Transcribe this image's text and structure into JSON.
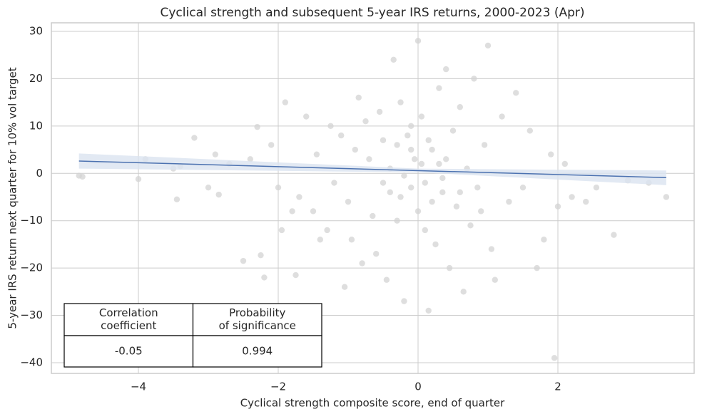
{
  "chart_data": {
    "type": "scatter",
    "title": "Cyclical strength and subsequent 5-year IRS returns, 2000-2023 (Apr)",
    "x_label": "Cyclical strength composite score, end of quarter",
    "y_label": "5-year IRS return next quarter for 10% vol target",
    "xlim": [
      -5.245,
      3.949
    ],
    "ylim": [
      -42.26,
      31.8
    ],
    "xticks": [
      {
        "value": -4,
        "label": "−4"
      },
      {
        "value": -2,
        "label": "−2"
      },
      0,
      2
    ],
    "yticks": [
      {
        "value": -40,
        "label": "−40"
      },
      {
        "value": -30,
        "label": "−30"
      },
      {
        "value": -20,
        "label": "−20"
      },
      {
        "value": -10,
        "label": "−10"
      },
      0,
      10,
      20,
      30
    ],
    "grid": true,
    "point_color": "#d3d3d3",
    "x": [
      -4.85,
      -4.8,
      -4.0,
      -3.9,
      -3.5,
      -3.45,
      -3.4,
      -3.2,
      -3.0,
      -2.9,
      -2.85,
      -2.7,
      -2.5,
      -2.4,
      -2.3,
      -2.25,
      -2.2,
      -2.1,
      -2.0,
      -1.95,
      -1.9,
      -1.8,
      -1.75,
      -1.7,
      -1.6,
      -1.5,
      -1.45,
      -1.4,
      -1.3,
      -1.25,
      -1.2,
      -1.1,
      -1.05,
      -1.0,
      -0.95,
      -0.9,
      -0.85,
      -0.8,
      -0.75,
      -0.7,
      -0.65,
      -0.6,
      -0.55,
      -0.5,
      -0.45,
      -0.4,
      -0.35,
      -0.3,
      -0.25,
      -0.2,
      -0.15,
      -0.1,
      -0.05,
      0.0,
      0.05,
      0.1,
      0.15,
      0.2,
      0.25,
      0.3,
      0.35,
      0.4,
      0.45,
      0.5,
      0.55,
      0.6,
      0.65,
      0.7,
      0.75,
      0.8,
      0.85,
      0.9,
      0.95,
      1.0,
      1.05,
      1.1,
      1.2,
      1.3,
      1.4,
      1.5,
      1.6,
      1.7,
      1.8,
      1.9,
      1.95,
      2.0,
      2.1,
      2.2,
      2.4,
      2.55,
      2.8,
      3.0,
      3.3,
      3.55,
      -0.2,
      0.3,
      0.1,
      -0.4,
      0.6,
      -0.1,
      -0.3,
      0.2,
      -0.5,
      0.4,
      0.0,
      -0.1,
      0.15,
      -0.25,
      0.35,
      0.05
    ],
    "y": [
      -0.5,
      -0.7,
      -1.2,
      3.0,
      1.0,
      -5.5,
      1.5,
      7.5,
      -3,
      4,
      -4.5,
      2,
      -18.5,
      3,
      9.8,
      -17.3,
      -22,
      6,
      -3,
      -12,
      15,
      -8,
      -21.5,
      -5,
      12,
      -8,
      4,
      -14,
      -12,
      10,
      -2,
      8,
      -24,
      -6,
      -14,
      5,
      16,
      -19,
      11,
      3,
      -9,
      -17,
      13,
      7,
      -22.5,
      -4,
      24,
      -10,
      15,
      -27,
      8,
      -3,
      3,
      28,
      12,
      -12,
      -29,
      5,
      -15,
      18,
      -4,
      22,
      -20,
      9,
      -7,
      14,
      -25,
      1,
      -11,
      20,
      -3,
      -8,
      6,
      27,
      -16,
      -22.5,
      12,
      -6,
      17,
      -3,
      9,
      -20,
      -14,
      4,
      -39,
      -7,
      2,
      -5,
      -6,
      -3,
      -13,
      -1.5,
      -2,
      -5,
      -0.5,
      2,
      -2,
      1,
      -4,
      5,
      6,
      -6,
      -2,
      3,
      -8,
      10,
      7,
      -5,
      -1,
      2
    ],
    "regression": {
      "color": "#4c72b0",
      "band_color": "#dbe3f0",
      "x": [
        -4.85,
        3.55
      ],
      "y": [
        2.6,
        -0.9
      ],
      "band": {
        "x": [
          -4.85,
          0,
          3.55
        ],
        "lower": [
          1.0,
          0.2,
          -2.5
        ],
        "upper": [
          4.2,
          1.0,
          0.6
        ]
      }
    },
    "table": {
      "header": [
        "Correlation\ncoefficient",
        "Probability\nof significance"
      ],
      "row": [
        "-0.05",
        "0.994"
      ]
    }
  }
}
